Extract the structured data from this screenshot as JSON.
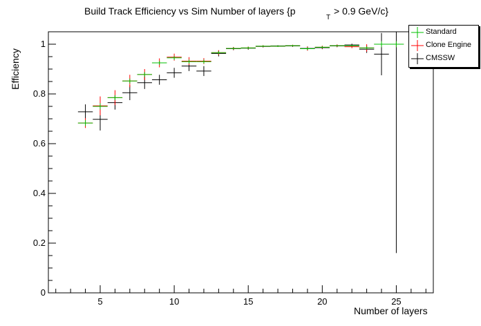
{
  "chart_data": {
    "type": "scatter",
    "title_main": "Build Track Efficiency vs Sim Number of layers {p",
    "title_sub": "T",
    "title_tail": " > 0.9 GeV/c}",
    "xlabel": "Number of layers",
    "ylabel": "Efficiency",
    "xlim": [
      1.5,
      27.5
    ],
    "ylim": [
      0,
      1.05
    ],
    "x_ticks": [
      5,
      10,
      15,
      20,
      25
    ],
    "y_ticks": [
      0,
      0.2,
      0.4,
      0.6,
      0.8,
      1
    ],
    "x_tick_labels": [
      "5",
      "10",
      "15",
      "20",
      "25"
    ],
    "y_tick_labels": [
      "0",
      "0.2",
      "0.4",
      "0.6",
      "0.8",
      "1"
    ],
    "legend_position": "top-right",
    "series": [
      {
        "name": "Standard",
        "color": "#00c000",
        "x": [
          4,
          5,
          6,
          7,
          8,
          9,
          10,
          11,
          12,
          13,
          14,
          15,
          16,
          17,
          18,
          19,
          20,
          21,
          22,
          23,
          24,
          25
        ],
        "y": [
          0.683,
          0.75,
          0.785,
          0.852,
          0.878,
          0.925,
          0.945,
          0.93,
          0.93,
          0.966,
          0.983,
          0.985,
          0.992,
          0.992,
          0.994,
          0.982,
          0.988,
          0.994,
          0.994,
          0.985,
          1.0,
          1.0
        ],
        "yerr": [
          0.012,
          0.012,
          0.01,
          0.01,
          0.01,
          0.008,
          0.008,
          0.008,
          0.008,
          0.006,
          0.004,
          0.004,
          0.003,
          0.003,
          0.003,
          0.005,
          0.004,
          0.003,
          0.003,
          0.006,
          0.0,
          0.0
        ]
      },
      {
        "name": "Clone Engine",
        "color": "#ff0000",
        "x": [
          4,
          5,
          6,
          7,
          8,
          9,
          10,
          11,
          12,
          13,
          14,
          15,
          16,
          17,
          18,
          19,
          20,
          21,
          22,
          23,
          24,
          25
        ],
        "y": [
          0.683,
          0.752,
          0.785,
          0.852,
          0.878,
          0.925,
          0.948,
          0.932,
          0.932,
          0.966,
          0.983,
          0.985,
          0.992,
          0.992,
          0.994,
          0.982,
          0.988,
          0.994,
          0.99,
          0.985,
          1.0,
          1.0
        ],
        "yerr": [
          0.02,
          0.038,
          0.03,
          0.025,
          0.022,
          0.018,
          0.014,
          0.016,
          0.012,
          0.01,
          0.006,
          0.005,
          0.004,
          0.003,
          0.004,
          0.008,
          0.006,
          0.005,
          0.006,
          0.015,
          0.0,
          0.0
        ]
      },
      {
        "name": "CMSSW",
        "color": "#000000",
        "x": [
          4,
          5,
          6,
          7,
          8,
          9,
          10,
          11,
          12,
          13,
          14,
          15,
          16,
          17,
          18,
          19,
          20,
          21,
          22,
          23,
          24,
          25
        ],
        "y": [
          0.728,
          0.698,
          0.765,
          0.805,
          0.845,
          0.857,
          0.885,
          0.912,
          0.892,
          0.963,
          0.982,
          0.984,
          0.991,
          0.993,
          0.993,
          0.983,
          0.986,
          0.993,
          0.997,
          0.98,
          0.96,
          1.0
        ],
        "yerr": [
          0.03,
          0.045,
          0.028,
          0.03,
          0.025,
          0.02,
          0.02,
          0.02,
          0.02,
          0.012,
          0.006,
          0.006,
          0.004,
          0.003,
          0.004,
          0.008,
          0.006,
          0.005,
          0.005,
          0.015,
          0.085,
          0.84
        ]
      }
    ]
  }
}
